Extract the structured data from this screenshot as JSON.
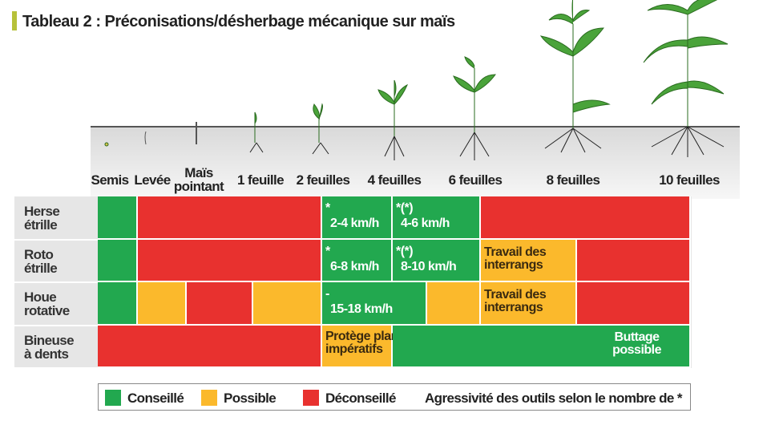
{
  "title": "Tableau 2 : Préconisations/désherbage mécanique sur maïs",
  "stages": [
    [
      "Semis"
    ],
    [
      "Levée"
    ],
    [
      "Maïs",
      "pointant"
    ],
    [
      "1 feuille"
    ],
    [
      "2 feuilles"
    ],
    [
      "4 feuilles"
    ],
    [
      "6 feuilles"
    ],
    [
      "8 feuilles"
    ],
    [
      "10 feuilles"
    ]
  ],
  "rows": [
    {
      "label": [
        "Herse",
        "étrille"
      ],
      "cells": [
        {
          "color": "#22a84f"
        },
        {
          "color": "#e8312f"
        },
        {
          "color": "#22a84f",
          "lines": [
            "*",
            "2-4 km/h"
          ]
        },
        {
          "color": "#22a84f",
          "lines": [
            "*(*)",
            "4-6 km/h"
          ]
        },
        {
          "color": "#e8312f"
        }
      ]
    },
    {
      "label": [
        "Roto",
        "étrille"
      ],
      "cells": [
        {
          "color": "#22a84f"
        },
        {
          "color": "#e8312f"
        },
        {
          "color": "#22a84f",
          "lines": [
            "*",
            "6-8 km/h"
          ]
        },
        {
          "color": "#22a84f",
          "lines": [
            "*(*)",
            "8-10 km/h"
          ]
        },
        {
          "color": "#fbb92c",
          "lines": [
            "Travail des",
            "interrangs"
          ]
        },
        {
          "color": "#e8312f"
        }
      ]
    },
    {
      "label": [
        "Houe",
        "rotative"
      ],
      "cells": [
        {
          "color": "#22a84f"
        },
        {
          "color": "#fbb92c"
        },
        {
          "color": "#e8312f"
        },
        {
          "color": "#fbb92c"
        },
        {
          "color": "#22a84f",
          "lines": [
            "-",
            "15-18 km/h"
          ]
        },
        {
          "color": "#fbb92c"
        },
        {
          "color": "#fbb92c",
          "lines": [
            "Travail des",
            "interrangs"
          ]
        },
        {
          "color": "#e8312f"
        }
      ]
    },
    {
      "label": [
        "Bineuse",
        "à dents"
      ],
      "cells": [
        {
          "color": "#e8312f"
        },
        {
          "color": "#fbb92c",
          "lines": [
            "Protège plants",
            "impératifs"
          ]
        },
        {
          "color": "#22a84f",
          "lines": [
            "Buttage",
            "possible"
          ]
        }
      ]
    }
  ],
  "legend": [
    {
      "name": "Conseillé",
      "color": "#22a84f"
    },
    {
      "name": "Possible",
      "color": "#fbb92c"
    },
    {
      "name": "Déconseillé",
      "color": "#e8312f"
    }
  ],
  "note": "Agressivité des outils selon le nombre de *"
}
